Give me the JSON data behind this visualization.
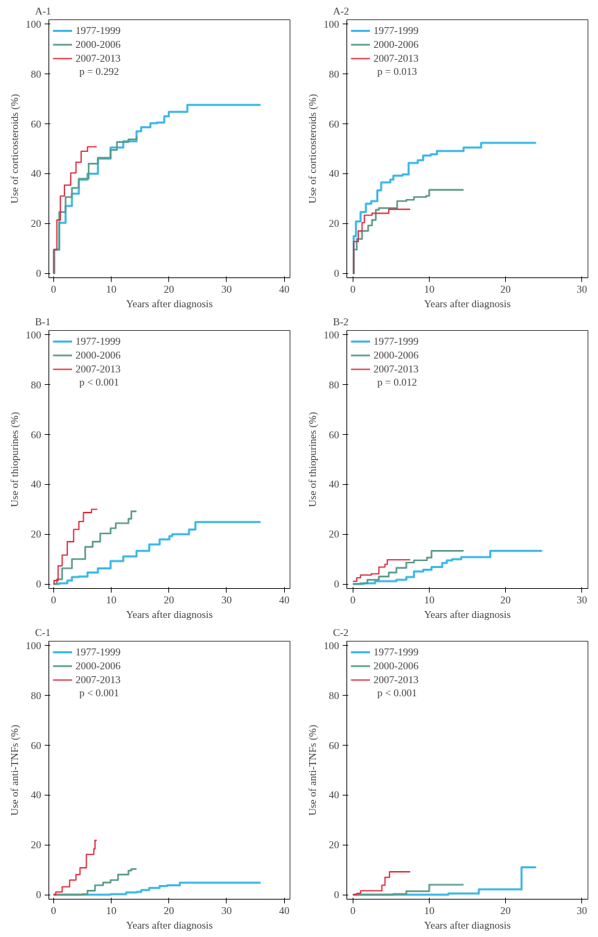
{
  "chart_data": [
    {
      "type": "step",
      "title": "A-1",
      "xlabel": "Years after diagnosis",
      "ylabel": "Use of corticosteroids (%)",
      "xlim": [
        -0.8,
        41
      ],
      "ylim": [
        -1.8,
        101.8
      ],
      "xticks": [
        0,
        10,
        20,
        30,
        40
      ],
      "yticks": [
        0,
        20,
        40,
        60,
        80,
        100
      ],
      "grid": false,
      "legend": "top left",
      "annotations": [
        "p = 0.292"
      ],
      "series": [
        {
          "name": "1977-1999",
          "color": "#3db8e8",
          "x": [
            0,
            0.13,
            1,
            2.1,
            3.2,
            4.4,
            5.9,
            7.7,
            9.9,
            12.1,
            14.4,
            15.2,
            16.8,
            17.9,
            19.2,
            20,
            23.2,
            35.9
          ],
          "values": [
            0,
            9.5,
            20.3,
            27,
            32,
            37.6,
            40,
            46,
            50.5,
            53,
            57,
            58.6,
            60.2,
            60.5,
            63,
            64.8,
            67.6,
            67.6
          ]
        },
        {
          "name": "2000-2006",
          "color": "#5a9a88",
          "x": [
            0,
            0.1,
            1,
            2.1,
            3.2,
            4.4,
            6.1,
            7.7,
            9.9,
            11,
            13,
            14.4
          ],
          "values": [
            0,
            9.5,
            24.6,
            30.6,
            34.3,
            38,
            44,
            46.4,
            49.5,
            52.7,
            53.8,
            54.9
          ]
        },
        {
          "name": "2007-2013",
          "color": "#e0283c",
          "x": [
            0,
            0.05,
            0.6,
            1.2,
            1.9,
            3,
            3.9,
            4.8,
            5.9,
            7.5
          ],
          "values": [
            0,
            9.5,
            21.4,
            31,
            35.4,
            40.3,
            44.6,
            49,
            50.8,
            50.8
          ]
        }
      ]
    },
    {
      "type": "step",
      "title": "A-2",
      "xlabel": "Years after diagnosis",
      "ylabel": "Use of corticosteroids (%)",
      "xlim": [
        -0.8,
        30.8
      ],
      "ylim": [
        -1.8,
        101.8
      ],
      "xticks": [
        0,
        10,
        20,
        30
      ],
      "yticks": [
        0,
        20,
        40,
        60,
        80,
        100
      ],
      "grid": false,
      "legend": "top left",
      "annotations": [
        "p = 0.013"
      ],
      "series": [
        {
          "name": "1977-1999",
          "color": "#3db8e8",
          "x": [
            0,
            0.1,
            0.4,
            1,
            1.7,
            2.4,
            3.2,
            3.7,
            4.9,
            5.3,
            6.5,
            7.3,
            8.5,
            9.2,
            10.2,
            11,
            14.5,
            16.8,
            24
          ],
          "values": [
            0,
            14.9,
            20.8,
            24.6,
            27.9,
            29,
            33.3,
            36.5,
            37.6,
            39.2,
            39.7,
            44.3,
            45.4,
            47.3,
            47.8,
            49.1,
            50.5,
            52.4,
            52.4
          ]
        },
        {
          "name": "2000-2006",
          "color": "#5a9a88",
          "x": [
            0,
            0.1,
            0.5,
            1.2,
            2,
            2.5,
            3,
            3.4,
            5,
            5.8,
            7,
            8,
            9.6,
            10,
            14.5
          ],
          "values": [
            0,
            9.5,
            13.8,
            17,
            19.2,
            21.4,
            25.5,
            26.2,
            26.2,
            29,
            29.5,
            30.6,
            31.1,
            33.5,
            33.5
          ]
        },
        {
          "name": "2007-2013",
          "color": "#e0283c",
          "x": [
            0,
            0.1,
            0.7,
            1.2,
            1.5,
            2.5,
            4.7,
            7.5
          ],
          "values": [
            0,
            12.7,
            17,
            20.3,
            23.3,
            24.1,
            25.7,
            25.7
          ]
        }
      ]
    },
    {
      "type": "step",
      "title": "B-1",
      "xlabel": "Years after diagnosis",
      "ylabel": "Use of thiopurines (%)",
      "xlim": [
        -0.8,
        41
      ],
      "ylim": [
        -1.8,
        101.8
      ],
      "xticks": [
        0,
        10,
        20,
        30,
        40
      ],
      "yticks": [
        0,
        20,
        40,
        60,
        80,
        100
      ],
      "grid": false,
      "legend": "top left",
      "annotations": [
        "p < 0.001"
      ],
      "series": [
        {
          "name": "1977-1999",
          "color": "#3db8e8",
          "x": [
            0,
            1,
            2.4,
            3.2,
            4.4,
            5.9,
            7.7,
            9.9,
            12.1,
            14.4,
            16.6,
            18.4,
            20.1,
            20.6,
            23.5,
            24.6,
            35.9
          ],
          "values": [
            0,
            0.3,
            1.4,
            2.8,
            3,
            4.6,
            6.3,
            9.2,
            11.1,
            13.3,
            15.9,
            17.9,
            19.2,
            20,
            21.9,
            24.9,
            24.9
          ]
        },
        {
          "name": "2000-2006",
          "color": "#5a9a88",
          "x": [
            0,
            0.6,
            1.5,
            3.2,
            5.5,
            6.8,
            8.1,
            9.9,
            10.8,
            13,
            13.5,
            14.4
          ],
          "values": [
            0,
            1.9,
            6.3,
            10,
            14.9,
            17,
            20.3,
            22.4,
            24.4,
            26.2,
            29.2,
            29.2
          ]
        },
        {
          "name": "2007-2013",
          "color": "#e0283c",
          "x": [
            0,
            0.1,
            0.8,
            1.5,
            2.4,
            3.5,
            4.4,
            5.2,
            6.6,
            7.5
          ],
          "values": [
            0,
            1.4,
            7.3,
            11.6,
            17,
            21.9,
            25.1,
            28.7,
            30,
            30.2
          ]
        }
      ]
    },
    {
      "type": "step",
      "title": "B-2",
      "xlabel": "Years after diagnosis",
      "ylabel": "Use of thiopurines (%)",
      "xlim": [
        -0.8,
        30.8
      ],
      "ylim": [
        -1.8,
        101.8
      ],
      "xticks": [
        0,
        10,
        20,
        30
      ],
      "yticks": [
        0,
        20,
        40,
        60,
        80,
        100
      ],
      "grid": false,
      "legend": "top left",
      "annotations": [
        "p = 0.012"
      ],
      "series": [
        {
          "name": "1977-1999",
          "color": "#3db8e8",
          "x": [
            0,
            1.4,
            2.9,
            5.7,
            7,
            8,
            9.2,
            10.3,
            11.7,
            12.3,
            13,
            14.2,
            18,
            24.8
          ],
          "values": [
            0,
            0.3,
            1.1,
            1.7,
            2.8,
            5,
            5.7,
            6.8,
            8.4,
            9.5,
            10,
            10.8,
            13.3,
            13.3
          ]
        },
        {
          "name": "2000-2006",
          "color": "#5a9a88",
          "x": [
            0,
            1,
            1.9,
            3.4,
            4.7,
            5.7,
            7,
            8,
            9.7,
            10.3,
            14.5
          ],
          "values": [
            0,
            0.3,
            1.7,
            3,
            4.6,
            6.5,
            8.6,
            9.5,
            10.6,
            13.3,
            13.3
          ]
        },
        {
          "name": "2007-2013",
          "color": "#e0283c",
          "x": [
            0,
            0.5,
            1,
            2.4,
            3.4,
            4.2,
            4.5,
            7.5
          ],
          "values": [
            1.1,
            2.5,
            3.6,
            4.1,
            6.8,
            7.9,
            9.7,
            9.7
          ]
        }
      ]
    },
    {
      "type": "step",
      "title": "C-1",
      "xlabel": "Years after diagnosis",
      "ylabel": "Use of anti-TNFs (%)",
      "xlim": [
        -0.8,
        41
      ],
      "ylim": [
        -1.8,
        101.8
      ],
      "xticks": [
        0,
        10,
        20,
        30,
        40
      ],
      "yticks": [
        0,
        20,
        40,
        60,
        80,
        100
      ],
      "grid": false,
      "legend": "top left",
      "annotations": [
        "p < 0.001"
      ],
      "series": [
        {
          "name": "1977-1999",
          "color": "#3db8e8",
          "x": [
            0,
            9.9,
            12.6,
            14.4,
            15.2,
            16.6,
            18.4,
            19.7,
            21.9,
            35.9
          ],
          "values": [
            0,
            0.2,
            0.9,
            1.1,
            1.9,
            2.7,
            3.5,
            3.8,
            4.8,
            4.8
          ]
        },
        {
          "name": "2000-2006",
          "color": "#5a9a88",
          "x": [
            0,
            5,
            5.9,
            7.2,
            8.6,
            9.9,
            11.2,
            13,
            13.5,
            14.4
          ],
          "values": [
            0,
            0.2,
            1.6,
            3.8,
            4.9,
            5.9,
            8.1,
            9.7,
            10.3,
            10.3
          ]
        },
        {
          "name": "2007-2013",
          "color": "#e0283c",
          "x": [
            0,
            0.4,
            1.5,
            2.8,
            3.9,
            4.6,
            5.7,
            6.8,
            7,
            7.2,
            7.5
          ],
          "values": [
            0,
            1.1,
            3.2,
            5.9,
            8.1,
            10.8,
            16.2,
            16.2,
            18.4,
            21.8,
            21.8
          ]
        }
      ]
    },
    {
      "type": "step",
      "title": "C-2",
      "xlabel": "Years after diagnosis",
      "ylabel": "Use of anti-TNFs (%)",
      "xlim": [
        -0.8,
        30.8
      ],
      "ylim": [
        -1.8,
        101.8
      ],
      "xticks": [
        0,
        10,
        20,
        30
      ],
      "yticks": [
        0,
        20,
        40,
        60,
        80,
        100
      ],
      "grid": false,
      "legend": "top left",
      "annotations": [
        "p < 0.001"
      ],
      "series": [
        {
          "name": "1977-1999",
          "color": "#3db8e8",
          "x": [
            0,
            12.5,
            16.5,
            22.1,
            24
          ],
          "values": [
            0,
            0.5,
            2.2,
            11,
            11
          ]
        },
        {
          "name": "2000-2006",
          "color": "#5a9a88",
          "x": [
            0,
            5.3,
            7,
            10,
            14.5
          ],
          "values": [
            0,
            0.3,
            1.4,
            4,
            4
          ]
        },
        {
          "name": "2007-2013",
          "color": "#e0283c",
          "x": [
            0,
            0.5,
            1,
            3.8,
            4.2,
            4.8,
            7.5
          ],
          "values": [
            0,
            0.5,
            1.6,
            3.8,
            7,
            9.2,
            9.2
          ]
        }
      ]
    }
  ]
}
